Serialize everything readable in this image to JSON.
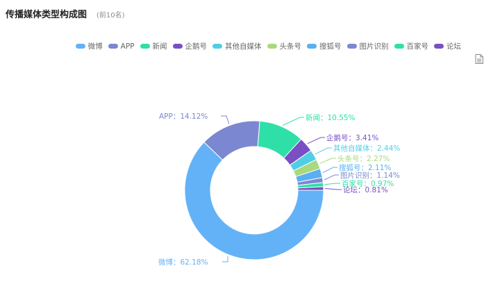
{
  "header": {
    "title": "传播媒体类型构成图",
    "subtitle": "(前10名)"
  },
  "toolbar": {
    "data_view_icon": "document-icon"
  },
  "chart_data": {
    "type": "pie",
    "donut": true,
    "legend_position": "top-right",
    "categories": [
      "微博",
      "APP",
      "新闻",
      "企鹅号",
      "其他自媒体",
      "头条号",
      "搜狐号",
      "图片识别",
      "百家号",
      "论坛"
    ],
    "values": [
      62.18,
      14.12,
      10.55,
      3.41,
      2.44,
      2.27,
      2.11,
      1.14,
      0.97,
      0.81
    ],
    "value_labels": [
      "微博：62.18%",
      "APP：14.12%",
      "新闻：10.55%",
      "企鹅号：3.41%",
      "其他自媒体：2.44%",
      "头条号：2.27%",
      "搜狐号：2.11%",
      "图片识别：1.14%",
      "百家号：0.97%",
      "论坛：0.81%"
    ],
    "colors": [
      "#63b2f7",
      "#7b88d1",
      "#2ee0a8",
      "#7a4fc4",
      "#4fcfe6",
      "#a9d97f",
      "#5aaff0",
      "#7b88d1",
      "#2ee0a8",
      "#7a4fc4"
    ]
  }
}
